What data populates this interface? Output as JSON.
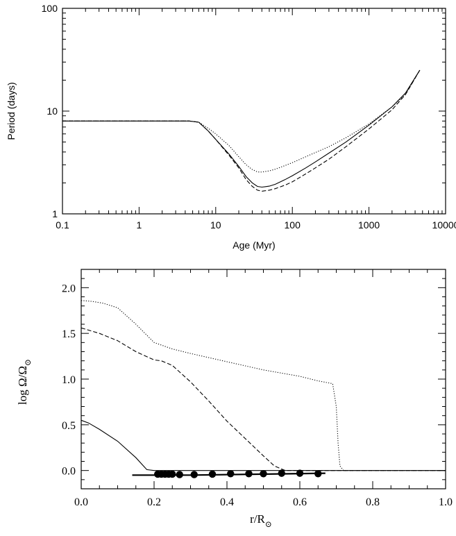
{
  "chart_data": [
    {
      "type": "line",
      "xlabel": "Age (Myr)",
      "ylabel": "Period (days)",
      "xscale": "log",
      "yscale": "log",
      "xlim": [
        0.1,
        10000
      ],
      "ylim": [
        1,
        100
      ],
      "x_ticks": [
        0.1,
        1,
        10,
        100,
        1000,
        10000
      ],
      "x_tick_labels": [
        "0.1",
        "1",
        "10",
        "100",
        "1000",
        "10000"
      ],
      "y_ticks": [
        1,
        10,
        100
      ],
      "y_tick_labels": [
        "1",
        "10",
        "100"
      ],
      "legend": "none",
      "series": [
        {
          "style": "solid",
          "x": [
            0.1,
            1,
            4.5,
            6,
            8,
            10,
            15,
            20,
            25,
            30,
            35,
            40,
            50,
            60,
            80,
            100,
            150,
            200,
            300,
            500,
            1000,
            2000,
            3000,
            4600
          ],
          "y": [
            8.0,
            8.0,
            8.0,
            7.8,
            6.4,
            5.3,
            3.8,
            2.9,
            2.3,
            2.0,
            1.85,
            1.82,
            1.86,
            1.94,
            2.15,
            2.35,
            2.8,
            3.2,
            3.9,
            5.0,
            7.3,
            11.0,
            15.0,
            25.0
          ]
        },
        {
          "style": "dashed",
          "x": [
            0.1,
            1,
            4.5,
            6,
            8,
            10,
            15,
            20,
            25,
            30,
            35,
            40,
            50,
            60,
            80,
            100,
            150,
            200,
            300,
            500,
            1000,
            2000,
            3000,
            4600
          ],
          "y": [
            8.0,
            8.0,
            8.0,
            7.8,
            6.4,
            5.3,
            3.7,
            2.8,
            2.15,
            1.85,
            1.7,
            1.66,
            1.7,
            1.76,
            1.9,
            2.05,
            2.45,
            2.8,
            3.4,
            4.5,
            6.7,
            10.3,
            14.5,
            25.0
          ]
        },
        {
          "style": "dotted",
          "x": [
            0.1,
            1,
            4.5,
            6,
            8,
            10,
            15,
            20,
            25,
            30,
            35,
            40,
            50,
            60,
            80,
            100,
            150,
            200,
            300,
            500,
            1000,
            2000,
            3000,
            4600
          ],
          "y": [
            8.0,
            8.0,
            8.0,
            7.8,
            6.8,
            6.0,
            4.6,
            3.6,
            3.0,
            2.7,
            2.56,
            2.55,
            2.62,
            2.72,
            2.95,
            3.15,
            3.6,
            3.95,
            4.5,
            5.5,
            7.5,
            11.0,
            14.5,
            25.0
          ]
        }
      ]
    },
    {
      "type": "line",
      "xlabel": "r/R",
      "xlabel_sub": "⊙",
      "ylabel": "log Ω/Ω",
      "ylabel_sub": "⊙",
      "xlim": [
        0.0,
        1.0
      ],
      "ylim": [
        -0.2,
        2.2
      ],
      "x_ticks": [
        0.0,
        0.2,
        0.4,
        0.6,
        0.8,
        1.0
      ],
      "x_tick_labels": [
        "0.0",
        "0.2",
        "0.4",
        "0.6",
        "0.8",
        "1.0"
      ],
      "y_ticks": [
        0.0,
        0.5,
        1.0,
        1.5,
        2.0
      ],
      "y_tick_labels": [
        "0.0",
        "0.5",
        "1.0",
        "1.5",
        "2.0"
      ],
      "legend": "none",
      "series": [
        {
          "style": "solid",
          "x": [
            0.0,
            0.02,
            0.05,
            0.1,
            0.15,
            0.18,
            0.2,
            0.5,
            1.0
          ],
          "y": [
            0.55,
            0.52,
            0.45,
            0.32,
            0.14,
            0.01,
            0.0,
            0.0,
            0.0
          ]
        },
        {
          "style": "dashed",
          "x": [
            0.0,
            0.05,
            0.1,
            0.15,
            0.2,
            0.22,
            0.25,
            0.3,
            0.35,
            0.4,
            0.45,
            0.5,
            0.53,
            0.56,
            1.0
          ],
          "y": [
            1.56,
            1.5,
            1.42,
            1.3,
            1.21,
            1.2,
            1.15,
            0.97,
            0.76,
            0.54,
            0.35,
            0.16,
            0.05,
            0.0,
            0.0
          ]
        },
        {
          "style": "dotted",
          "x": [
            0.0,
            0.03,
            0.06,
            0.1,
            0.15,
            0.2,
            0.25,
            0.3,
            0.4,
            0.5,
            0.6,
            0.65,
            0.69,
            0.7,
            0.705,
            0.71,
            0.72,
            1.0
          ],
          "y": [
            1.86,
            1.85,
            1.83,
            1.78,
            1.6,
            1.4,
            1.33,
            1.28,
            1.19,
            1.1,
            1.03,
            0.98,
            0.95,
            0.7,
            0.3,
            0.05,
            0.0,
            0.0
          ]
        },
        {
          "style": "solid-thick",
          "x": [
            0.14,
            0.3,
            0.5,
            0.67
          ],
          "y": [
            -0.05,
            -0.05,
            -0.04,
            -0.03
          ]
        },
        {
          "style": "points",
          "x": [
            0.21,
            0.22,
            0.23,
            0.24,
            0.25,
            0.27,
            0.31,
            0.36,
            0.41,
            0.46,
            0.5,
            0.55,
            0.6,
            0.65
          ],
          "y": [
            -0.04,
            -0.04,
            -0.04,
            -0.04,
            -0.04,
            -0.045,
            -0.045,
            -0.04,
            -0.035,
            -0.035,
            -0.035,
            -0.03,
            -0.03,
            -0.035
          ]
        }
      ]
    }
  ]
}
